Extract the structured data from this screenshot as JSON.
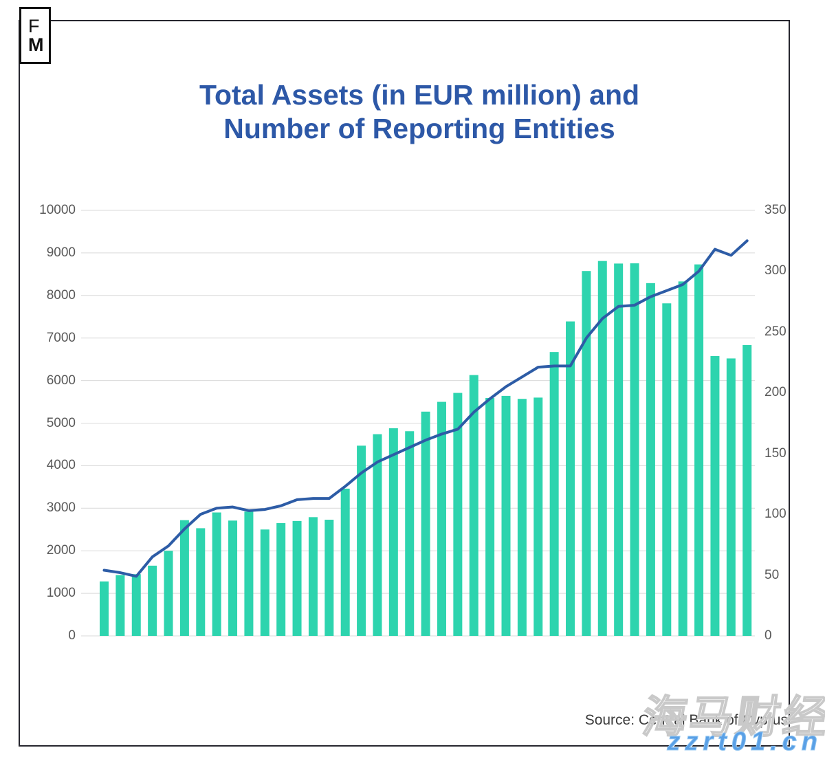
{
  "logo": {
    "top": "F",
    "bottom": "M"
  },
  "title": {
    "line1": "Total Assets (in EUR million) and",
    "line2": "Number of Reporting Entities"
  },
  "source_note": "Source: Central Bank of Cyprus",
  "watermark": {
    "cjk_text": "海马财经",
    "site_text": "zzrt01.cn"
  },
  "colors": {
    "bar": "#2dd4ae",
    "line": "#2d5ca6",
    "title_text": "#2d58a7",
    "axis_text": "#595959",
    "gridline": "#d9d9d9",
    "frame_border": "#26262e",
    "watermark_blue": "#5aa0e6"
  },
  "chart_data": {
    "type": "bar+line",
    "title": "Total Assets (in EUR million) and Number of Reporting Entities",
    "x_axis_labels_visible": false,
    "grid": "horizontal",
    "legend": "none",
    "series": [
      {
        "name": "Total Assets (EUR million)",
        "type": "bar",
        "axis": "left",
        "values": [
          1280,
          1430,
          1450,
          1650,
          2000,
          2720,
          2530,
          2900,
          2710,
          2920,
          2500,
          2650,
          2700,
          2790,
          2730,
          3460,
          4470,
          4740,
          4880,
          4810,
          5270,
          5500,
          5710,
          6130,
          5590,
          5640,
          5570,
          5600,
          6670,
          7390,
          8575,
          8810,
          8750,
          8755,
          8290,
          7815,
          8330,
          8730,
          6575,
          6520,
          6835
        ]
      },
      {
        "name": "Number of Reporting Entities",
        "type": "line",
        "axis": "right",
        "values": [
          54,
          52,
          49,
          65,
          74,
          88,
          100,
          105,
          106,
          103,
          104,
          107,
          112,
          113,
          113,
          123,
          134,
          143,
          149,
          155,
          161,
          166,
          170,
          184,
          195,
          205,
          213,
          221,
          222,
          222,
          245,
          261,
          271,
          272,
          279,
          284,
          289,
          300,
          318,
          313,
          325
        ]
      }
    ],
    "left_axis": {
      "range": [
        0,
        10000
      ],
      "ticks": [
        0,
        1000,
        2000,
        3000,
        4000,
        5000,
        6000,
        7000,
        8000,
        9000,
        10000
      ]
    },
    "right_axis": {
      "range": [
        0,
        350
      ],
      "ticks": [
        0,
        50,
        100,
        150,
        200,
        250,
        300,
        350
      ]
    }
  }
}
